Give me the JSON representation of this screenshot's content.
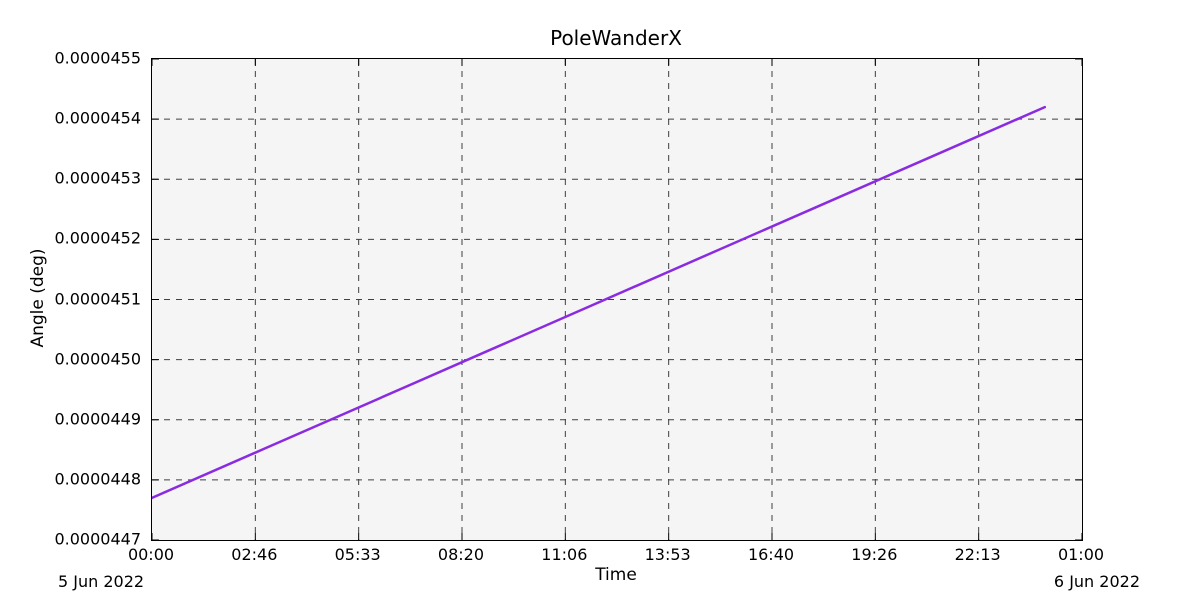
{
  "chart_data": {
    "type": "line",
    "title": "PoleWanderX",
    "xlabel": "Time",
    "ylabel": "Angle (deg)",
    "plot_background": "#f5f5f5",
    "grid": {
      "visible": true,
      "style": "dashed",
      "color": "#404040"
    },
    "x_axis": {
      "unit": "hours since 2022-06-05 00:00",
      "range": [
        0,
        25
      ],
      "ticks": {
        "hours": [
          0,
          2.7778,
          5.5556,
          8.3333,
          11.1111,
          13.8889,
          16.6667,
          19.4444,
          22.2222,
          25
        ],
        "labels": [
          "00:00",
          "02:46",
          "05:33",
          "08:20",
          "11:06",
          "13:53",
          "16:40",
          "19:26",
          "22:13",
          "01:00"
        ]
      },
      "left_date": "5 Jun 2022",
      "right_date": "6 Jun 2022"
    },
    "y_axis": {
      "range": [
        4.47e-05,
        4.55e-05
      ],
      "tick_step": 1e-07,
      "tick_labels": [
        "0.0000447",
        "0.0000448",
        "0.0000449",
        "0.0000450",
        "0.0000451",
        "0.0000452",
        "0.0000453",
        "0.0000454",
        "0.0000455"
      ]
    },
    "series": [
      {
        "name": "PoleWanderX",
        "color": "#8a2be2",
        "line_width": 2.5,
        "x_hours": [
          0,
          3,
          6,
          9,
          12,
          15,
          18,
          21,
          24
        ],
        "y_deg": [
          4.477e-05,
          4.48513e-05,
          4.49325e-05,
          4.50138e-05,
          4.5095e-05,
          4.51763e-05,
          4.52575e-05,
          4.53388e-05,
          4.542e-05
        ]
      }
    ]
  }
}
